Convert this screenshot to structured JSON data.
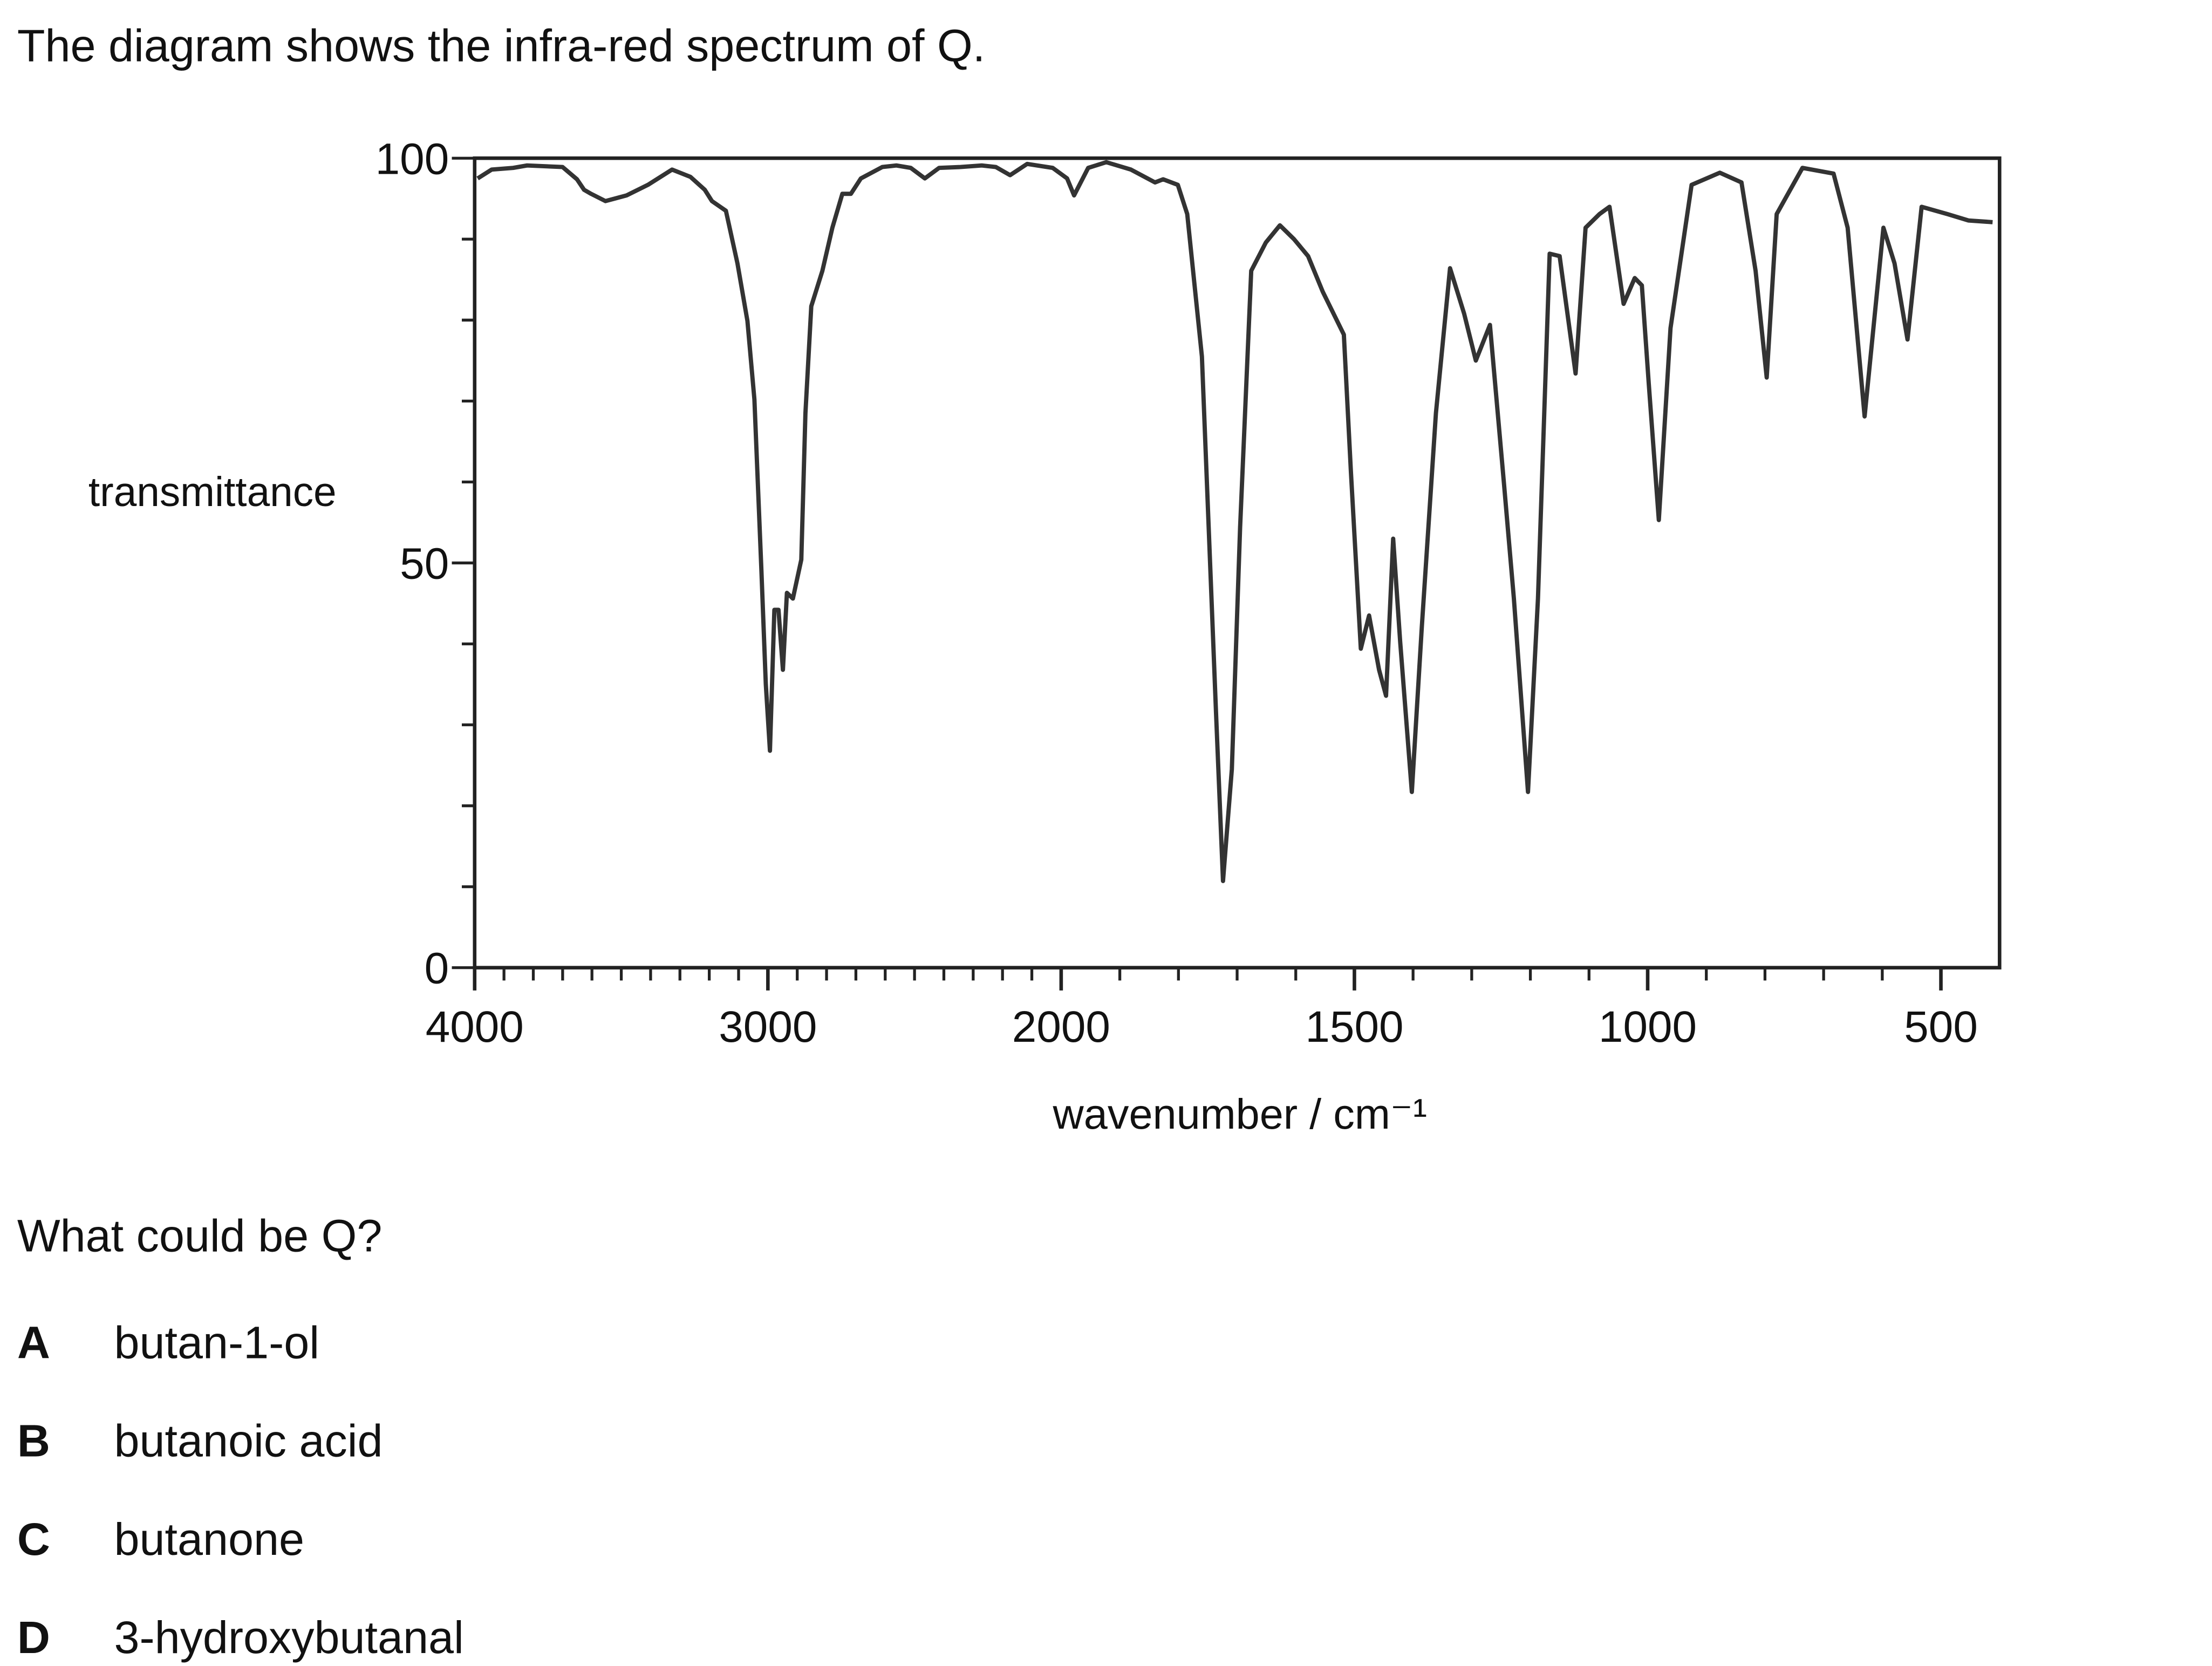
{
  "intro": "The diagram shows the infra-red spectrum of Q.",
  "chart_data": {
    "type": "line",
    "ylabel": "transmittance",
    "xlabel": "wavenumber / cm⁻¹",
    "color": "#333333",
    "xlim": [
      4000,
      400
    ],
    "xticks": [
      4000,
      3000,
      2000,
      1500,
      1000,
      500
    ],
    "xminorticks": [
      3900,
      3800,
      3700,
      3600,
      3500,
      3400,
      3300,
      3200,
      3100,
      2900,
      2800,
      2700,
      2600,
      2500,
      2400,
      2300,
      2200,
      2100,
      1900,
      1800,
      1700,
      1600,
      1400,
      1300,
      1200,
      1100,
      900,
      800,
      700,
      600
    ],
    "ylim": [
      0,
      100
    ],
    "yticks": [
      0,
      50,
      100
    ],
    "yminorticks": [
      10,
      20,
      30,
      40,
      60,
      70,
      80,
      90
    ],
    "x": [
      3990,
      3942,
      3869,
      3821,
      3700,
      3651,
      3627,
      3603,
      3554,
      3482,
      3409,
      3327,
      3264,
      3215,
      3191,
      3143,
      3104,
      3070,
      3046,
      3022,
      3007,
      2993,
      2978,
      2964,
      2949,
      2935,
      2915,
      2886,
      2872,
      2852,
      2814,
      2780,
      2746,
      2717,
      2683,
      2610,
      2562,
      2513,
      2465,
      2416,
      2344,
      2271,
      2223,
      2174,
      2116,
      2029,
      1990,
      1978,
      1954,
      1923,
      1881,
      1840,
      1826,
      1801,
      1785,
      1760,
      1736,
      1724,
      1709,
      1695,
      1676,
      1651,
      1627,
      1603,
      1579,
      1554,
      1518,
      1506,
      1489,
      1475,
      1458,
      1446,
      1434,
      1422,
      1402,
      1385,
      1361,
      1337,
      1313,
      1293,
      1269,
      1245,
      1228,
      1204,
      1187,
      1167,
      1150,
      1123,
      1106,
      1082,
      1065,
      1041,
      1022,
      1010,
      998,
      981,
      961,
      925,
      877,
      840,
      816,
      797,
      780,
      736,
      683,
      659,
      630,
      598,
      579,
      557,
      533,
      489,
      453,
      412
    ],
    "values": [
      97.5,
      98.6,
      98.8,
      99.1,
      98.9,
      97.4,
      96.1,
      95.6,
      94.7,
      95.4,
      96.7,
      98.6,
      97.7,
      96.1,
      94.7,
      93.5,
      87.0,
      79.9,
      70.2,
      49.1,
      35.0,
      26.8,
      44.2,
      44.2,
      36.8,
      46.3,
      45.6,
      50.4,
      68.5,
      81.7,
      86.1,
      91.4,
      95.6,
      95.6,
      97.5,
      98.9,
      99.1,
      98.8,
      97.5,
      98.8,
      98.9,
      99.1,
      98.9,
      97.9,
      99.3,
      98.8,
      97.5,
      95.4,
      98.8,
      99.5,
      98.6,
      97.0,
      97.4,
      96.7,
      93.1,
      75.5,
      31.5,
      10.7,
      24.5,
      54.4,
      86.1,
      89.6,
      91.7,
      90.0,
      87.9,
      83.5,
      78.2,
      61.4,
      39.4,
      43.5,
      36.8,
      33.6,
      53.0,
      40.3,
      21.7,
      42.1,
      68.5,
      86.4,
      80.8,
      75.0,
      79.4,
      59.7,
      45.6,
      21.7,
      45.6,
      88.2,
      87.9,
      73.4,
      91.4,
      93.1,
      94.0,
      82.0,
      85.2,
      84.3,
      72.0,
      55.3,
      79.0,
      96.7,
      98.2,
      97.0,
      86.1,
      72.9,
      93.1,
      98.8,
      98.1,
      91.4,
      68.1,
      91.4,
      87.0,
      77.6,
      94.0,
      93.1,
      92.3,
      92.1
    ]
  },
  "question": "What could be Q?",
  "options": [
    {
      "letter": "A",
      "text": "butan-1-ol"
    },
    {
      "letter": "B",
      "text": "butanoic acid"
    },
    {
      "letter": "C",
      "text": "butanone"
    },
    {
      "letter": "D",
      "text": "3-hydroxybutanal"
    }
  ]
}
